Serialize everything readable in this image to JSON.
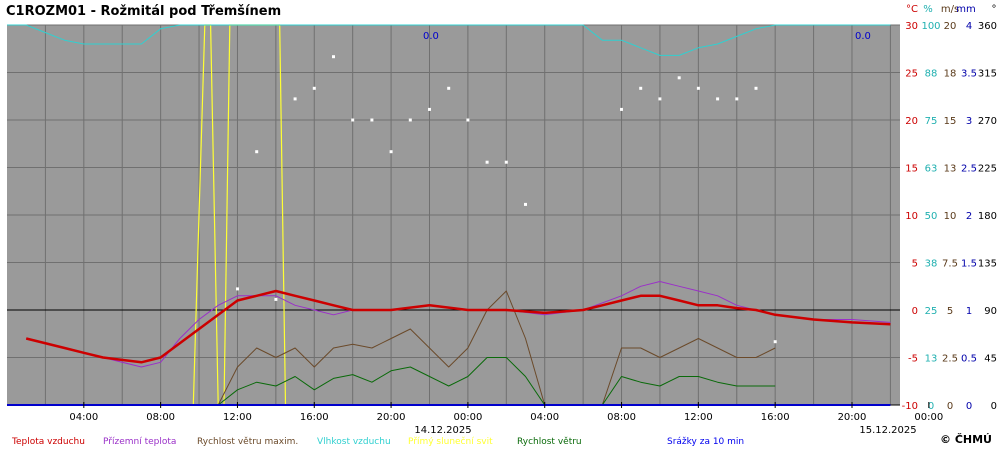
{
  "chart_data": {
    "type": "line",
    "title": "C1ROZM01 - Rožmitál pod Třemšínem",
    "x_ticks": [
      "04:00",
      "08:00",
      "12:00",
      "16:00",
      "20:00",
      "00:00",
      "04:00",
      "08:00",
      "12:00",
      "16:00",
      "20:00",
      "00:00"
    ],
    "date_labels": [
      "14.12.2025",
      "15.12.2025"
    ],
    "axes": [
      {
        "unit": "°C",
        "color": "#cc0000",
        "ticks": [
          "30",
          "25",
          "20",
          "15",
          "10",
          "5",
          "0",
          "-5",
          "-10"
        ]
      },
      {
        "unit": "%",
        "color": "#20b0b0",
        "ticks": [
          "100",
          "88",
          "75",
          "63",
          "50",
          "38",
          "25",
          "13",
          "0"
        ]
      },
      {
        "unit": "m/s",
        "color": "#5a3a1a",
        "ticks": [
          "20",
          "18",
          "15",
          "13",
          "10",
          "7.5",
          "5",
          "2.5",
          "0"
        ]
      },
      {
        "unit": "mm",
        "color": "#0000aa",
        "ticks": [
          "4",
          "3.5",
          "3",
          "2.5",
          "2",
          "1.5",
          "1",
          "0.5",
          "0"
        ]
      },
      {
        "unit": "°",
        "color": "#000000",
        "ticks": [
          "360",
          "315",
          "270",
          "225",
          "180",
          "135",
          "90",
          "45",
          "0"
        ]
      }
    ],
    "annotations": [
      "0.0",
      "0.0"
    ],
    "legend": [
      {
        "name": "Teplota vzduchu",
        "color": "#cc0000"
      },
      {
        "name": "Přízemní teplota",
        "color": "#9a30c8"
      },
      {
        "name": "Rychlost větru maxim.",
        "color": "#6b4a2a"
      },
      {
        "name": "Vlhkost vzduchu",
        "color": "#30d0d0"
      },
      {
        "name": "Přímý sluneční svit",
        "color": "#ffff33"
      },
      {
        "name": "Rychlost větru",
        "color": "#0a6a0a"
      },
      {
        "name": "Směr větru",
        "color": "#ffffff"
      },
      {
        "name": "Srážky za 10 min",
        "color": "#0000ee"
      }
    ],
    "series": [
      {
        "name": "Teplota vzduchu",
        "unit": "°C",
        "x": [
          1,
          3,
          4,
          5,
          7,
          8,
          9,
          10,
          12,
          13,
          14,
          15,
          16,
          17,
          18,
          19,
          20,
          22,
          24,
          26,
          28,
          30,
          31,
          32,
          33,
          34,
          35,
          36,
          37,
          38,
          39,
          40,
          42,
          44,
          46
        ],
        "values": [
          -3,
          -4,
          -4.5,
          -5,
          -5.5,
          -5,
          -3.5,
          -2,
          1,
          1.5,
          2,
          1.5,
          1,
          0.5,
          0,
          0,
          0,
          0.5,
          0,
          0,
          -0.3,
          0,
          0.5,
          1,
          1.5,
          1.5,
          1,
          0.5,
          0.5,
          0.2,
          0,
          -0.5,
          -1,
          -1.3,
          -1.5
        ]
      },
      {
        "name": "Přízemní teplota",
        "unit": "°C",
        "x": [
          1,
          3,
          5,
          7,
          8,
          9,
          10,
          11,
          12,
          13,
          14,
          15,
          16,
          17,
          18,
          20,
          22,
          24,
          26,
          28,
          30,
          32,
          33,
          34,
          35,
          36,
          37,
          38,
          40,
          42,
          44,
          46
        ],
        "values": [
          -3,
          -4,
          -5,
          -6,
          -5.5,
          -3,
          -1,
          0.5,
          1.5,
          1.5,
          1.5,
          0.5,
          0,
          -0.5,
          0,
          0,
          0.5,
          0,
          0,
          -0.5,
          0,
          1.5,
          2.5,
          3,
          2.5,
          2,
          1.5,
          0.5,
          -0.5,
          -1,
          -1,
          -1.3
        ]
      },
      {
        "name": "Vlhkost vzduchu",
        "unit": "%",
        "x": [
          0,
          1,
          2,
          3,
          4,
          5,
          6,
          7,
          8,
          9,
          10,
          11,
          12,
          14,
          16,
          18,
          20,
          22,
          24,
          26,
          28,
          30,
          31,
          32,
          33,
          34,
          35,
          36,
          37,
          38,
          39,
          40,
          42,
          44,
          46
        ],
        "values": [
          100,
          100,
          98,
          96,
          95,
          95,
          95,
          95,
          99,
          100,
          100,
          100,
          100,
          100,
          100,
          100,
          100,
          100,
          100,
          100,
          100,
          100,
          96,
          96,
          94,
          92,
          92,
          94,
          95,
          97,
          99,
          100,
          100,
          100,
          100
        ]
      },
      {
        "name": "Rychlost větru maxim.",
        "unit": "m/s",
        "x": [
          11,
          12,
          13,
          14,
          15,
          16,
          17,
          18,
          19,
          20,
          21,
          22,
          23,
          24,
          25,
          26,
          27,
          28,
          30,
          31,
          32,
          33,
          34,
          35,
          36,
          37,
          38,
          39,
          40
        ],
        "values": [
          0,
          2,
          3,
          2.5,
          3,
          2,
          3,
          3.2,
          3,
          3.5,
          4,
          3,
          2,
          3,
          5,
          6,
          3.5,
          0,
          0,
          0,
          3,
          3,
          2.5,
          3,
          3.5,
          3,
          2.5,
          2.5,
          3
        ]
      },
      {
        "name": "Rychlost větru",
        "unit": "m/s",
        "x": [
          11,
          12,
          13,
          14,
          15,
          16,
          17,
          18,
          19,
          20,
          21,
          22,
          23,
          24,
          25,
          26,
          27,
          28,
          30,
          31,
          32,
          33,
          34,
          35,
          36,
          37,
          38,
          39,
          40
        ],
        "values": [
          0,
          0.8,
          1.2,
          1,
          1.5,
          0.8,
          1.4,
          1.6,
          1.2,
          1.8,
          2,
          1.5,
          1,
          1.5,
          2.5,
          2.5,
          1.5,
          0,
          0,
          0,
          1.5,
          1.2,
          1,
          1.5,
          1.5,
          1.2,
          1,
          1,
          1
        ]
      },
      {
        "name": "Přímý sluneční svit",
        "unit": "°C",
        "x": [
          9.7,
          10,
          10.3,
          10.6,
          11,
          11.3,
          11.6,
          12,
          12.3,
          12.6,
          14.2,
          14.5
        ],
        "values": [
          -10,
          10,
          30,
          30,
          -10,
          -10,
          30,
          30,
          30,
          30,
          30,
          -10
        ]
      },
      {
        "name": "Směr větru",
        "unit": "°",
        "x": [
          12,
          13,
          14,
          15,
          16,
          17,
          18,
          19,
          20,
          21,
          22,
          23,
          24,
          25,
          26,
          27,
          32,
          33,
          34,
          35,
          36,
          37,
          38,
          39,
          40
        ],
        "values": [
          110,
          240,
          100,
          290,
          300,
          330,
          270,
          270,
          240,
          270,
          280,
          300,
          270,
          230,
          230,
          190,
          280,
          300,
          290,
          310,
          300,
          290,
          290,
          300,
          60
        ]
      },
      {
        "name": "Srážky za 10 min",
        "unit": "mm",
        "x": [
          0,
          46
        ],
        "values": [
          0,
          0
        ]
      }
    ],
    "ylim": [
      -10,
      30
    ]
  }
}
